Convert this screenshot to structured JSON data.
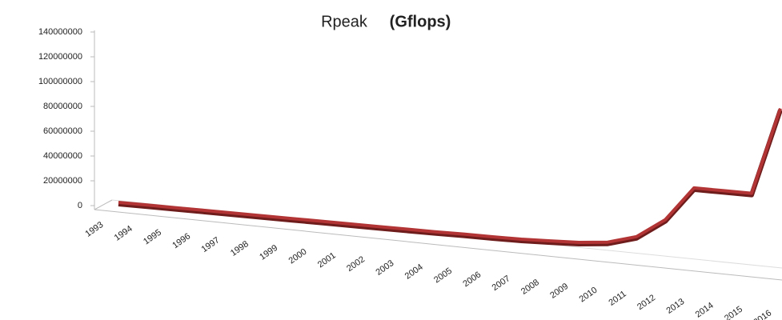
{
  "chart_data": {
    "type": "line",
    "title": "Rpeak",
    "title_unit": "(Gflops)",
    "categories": [
      "1993",
      "1994",
      "1995",
      "1996",
      "1997",
      "1998",
      "1999",
      "2000",
      "2001",
      "2002",
      "2003",
      "2004",
      "2005",
      "2006",
      "2007",
      "2008",
      "2009",
      "2010",
      "2011",
      "2012",
      "2013",
      "2014",
      "2015",
      "2016"
    ],
    "series": [
      {
        "name": "Rpeak",
        "color": "#b23434",
        "values": [
          131,
          236,
          236,
          614,
          1830,
          1830,
          3154,
          4938,
          11136,
          40960,
          40960,
          91750,
          367000,
          367000,
          596378,
          1375776,
          2331000,
          4701000,
          11280384,
          27112550,
          54902400,
          54902400,
          54902400,
          125435900
        ]
      }
    ],
    "ylim": [
      0,
      140000000
    ],
    "yticks": [
      0,
      20000000,
      40000000,
      60000000,
      80000000,
      100000000,
      120000000,
      140000000
    ],
    "grid": false
  }
}
